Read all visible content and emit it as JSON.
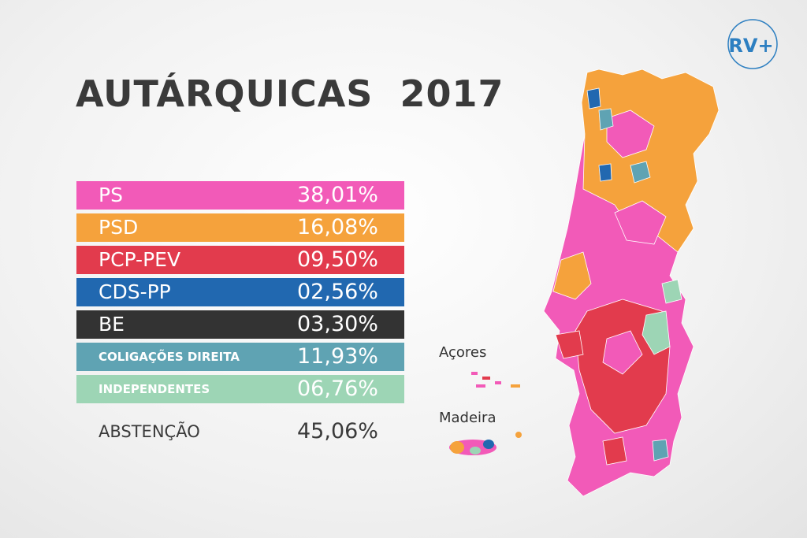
{
  "header": {
    "title": "AUTÁRQUICAS  2017",
    "logo": "RV+"
  },
  "table": {
    "rows": [
      {
        "name": "PS",
        "value": "38,01%",
        "color": "#f25ab8"
      },
      {
        "name": "PSD",
        "value": "16,08%",
        "color": "#f5a23c"
      },
      {
        "name": "PCP-PEV",
        "value": "09,50%",
        "color": "#e23b4d"
      },
      {
        "name": "CDS-PP",
        "value": "02,56%",
        "color": "#2168b0"
      },
      {
        "name": "BE",
        "value": "03,30%",
        "color": "#333333"
      },
      {
        "name": "COLIGAÇÕES DIREITA",
        "value": "11,93%",
        "color": "#5fa3b3"
      },
      {
        "name": "INDEPENDENTES",
        "value": "06,76%",
        "color": "#9dd5b5"
      }
    ],
    "abstention": {
      "name": "ABSTENÇÃO",
      "value": "45,06%"
    }
  },
  "map": {
    "labels": [
      "Açores",
      "Madeira"
    ]
  }
}
